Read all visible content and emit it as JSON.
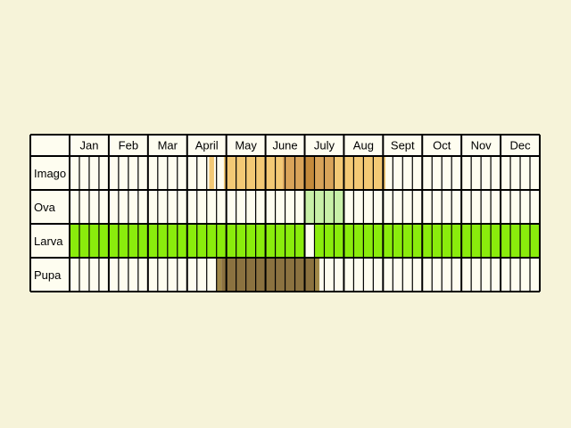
{
  "chart_data": {
    "type": "table",
    "months": [
      "Jan",
      "Feb",
      "Mar",
      "April",
      "May",
      "June",
      "July",
      "Aug",
      "Sept",
      "Oct",
      "Nov",
      "Dec"
    ],
    "weeks_per_month": 4,
    "rows": [
      {
        "label": "Imago",
        "bands": [
          {
            "start_week": 14.25,
            "end_week": 14.75,
            "color": "#f3c975"
          },
          {
            "start_week": 15.75,
            "end_week": 21.75,
            "color": "#f3c975"
          },
          {
            "start_week": 21.75,
            "end_week": 24,
            "color": "#d9a45a"
          },
          {
            "start_week": 24,
            "end_week": 25,
            "color": "#c48a3c"
          },
          {
            "start_week": 25,
            "end_week": 27,
            "color": "#d9a45a"
          },
          {
            "start_week": 27,
            "end_week": 32.25,
            "color": "#f3c975"
          }
        ]
      },
      {
        "label": "Ova",
        "bands": [
          {
            "start_week": 24,
            "end_week": 28,
            "color": "#c8f0a8"
          }
        ]
      },
      {
        "label": "Larva",
        "bands": [
          {
            "start_week": 0,
            "end_week": 24,
            "color": "#8aec0c"
          },
          {
            "start_week": 25,
            "end_week": 48,
            "color": "#8aec0c"
          }
        ]
      },
      {
        "label": "Pupa",
        "bands": [
          {
            "start_week": 15,
            "end_week": 15.5,
            "color": "#a08848"
          },
          {
            "start_week": 15.5,
            "end_week": 25,
            "color": "#8b7240"
          },
          {
            "start_week": 25,
            "end_week": 25.5,
            "color": "#a08848"
          }
        ]
      }
    ],
    "colors": {
      "background": "#f6f3d9",
      "cell": "#fefdf0",
      "border": "#000000"
    }
  }
}
